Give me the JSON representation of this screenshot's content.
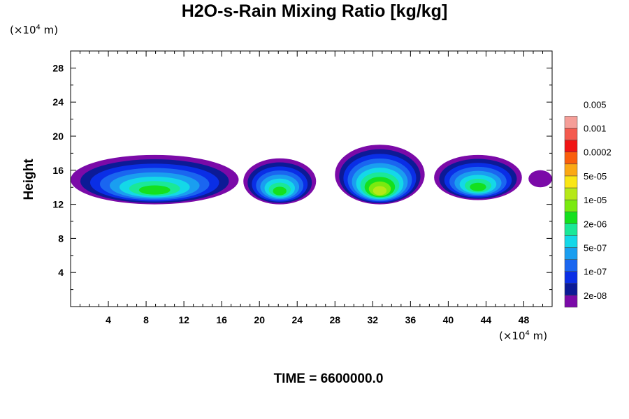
{
  "chart_data": {
    "type": "heatmap",
    "title": "H2O-s-Rain Mixing Ratio [kg/kg]",
    "ylabel": "Height",
    "xlabel": "",
    "x_unit_prefix": "(×10",
    "x_unit_exp": "4",
    "x_unit_suffix": " m)",
    "y_unit_prefix": "(×10",
    "y_unit_exp": "4",
    "y_unit_suffix": " m)",
    "xlim": [
      0,
      51
    ],
    "ylim": [
      0,
      30
    ],
    "x_ticks": [
      4,
      8,
      12,
      16,
      20,
      24,
      28,
      32,
      36,
      40,
      44,
      48
    ],
    "y_ticks": [
      4,
      8,
      12,
      16,
      20,
      24,
      28
    ],
    "colorbar": {
      "colors": [
        "#7b0aa8",
        "#0c1a96",
        "#0a2ee6",
        "#1a66f0",
        "#1a9ef0",
        "#14d8e8",
        "#1ae898",
        "#14e01e",
        "#7aea10",
        "#b6e818",
        "#fae614",
        "#fba814",
        "#fa5e0c",
        "#f01414",
        "#f45a4e",
        "#f59e98"
      ],
      "labels": [
        "2e-08",
        "1e-07",
        "5e-07",
        "2e-06",
        "1e-05",
        "5e-05",
        "0.0002",
        "0.001",
        "0.005"
      ]
    },
    "cloud_cells": [
      {
        "x_range": [
          0,
          17.8
        ],
        "top_height": 17.8,
        "base_height": 12.0,
        "core_values": [
          "1e-05",
          "2e-06"
        ]
      },
      {
        "x_range": [
          18.3,
          26
        ],
        "top_height": 17.4,
        "base_height": 12.0,
        "core_values": [
          "1e-05",
          "2e-06"
        ]
      },
      {
        "x_range": [
          28,
          37.5
        ],
        "top_height": 19.0,
        "base_height": 12.0,
        "core_values": [
          "5e-05",
          "1e-05"
        ]
      },
      {
        "x_range": [
          38.5,
          47.8
        ],
        "top_height": 17.8,
        "base_height": 12.5,
        "core_values": [
          "1e-05",
          "2e-06"
        ]
      },
      {
        "x_range": [
          48.5,
          51
        ],
        "top_height": 16.0,
        "base_height": 14.0,
        "core_values": [
          "2e-08"
        ]
      }
    ]
  },
  "footer": {
    "time_label": "TIME = 6600000.0"
  }
}
